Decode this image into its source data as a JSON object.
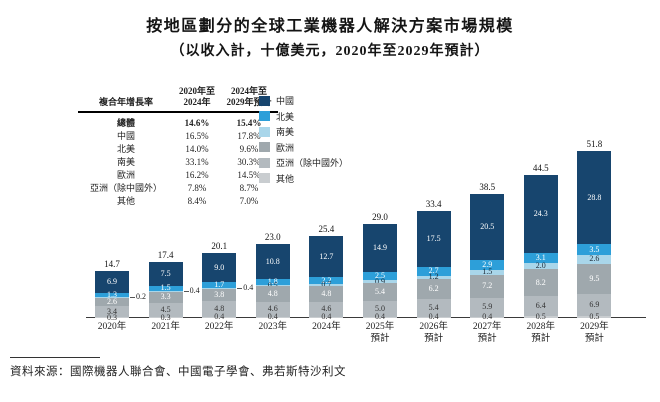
{
  "title": "按地區劃分的全球工業機器人解決方案市場規模",
  "subtitle": "（以收入計，十億美元，2020年至2029年預計）",
  "source": "資料來源：國際機器人聯合會、中國電子學會、弗若斯特沙利文",
  "cagr_table": {
    "headers": [
      "複合年增長率",
      "2020年至\n2024年",
      "2024年至\n2029年預計"
    ],
    "rows": [
      {
        "label": "總體",
        "v1": "14.6%",
        "v2": "15.4%",
        "bold": true
      },
      {
        "label": "中國",
        "v1": "16.5%",
        "v2": "17.8%",
        "bold": false
      },
      {
        "label": "北美",
        "v1": "14.0%",
        "v2": "9.6%",
        "bold": false
      },
      {
        "label": "南美",
        "v1": "33.1%",
        "v2": "30.3%",
        "bold": false
      },
      {
        "label": "歐洲",
        "v1": "16.2%",
        "v2": "14.5%",
        "bold": false
      },
      {
        "label": "亞洲（除中國外）",
        "v1": "7.8%",
        "v2": "8.7%",
        "bold": false
      },
      {
        "label": "其他",
        "v1": "8.4%",
        "v2": "7.0%",
        "bold": false
      }
    ]
  },
  "legend": {
    "items": [
      {
        "label": "中國",
        "color": "#17456e"
      },
      {
        "label": "北美",
        "color": "#2d9fd9"
      },
      {
        "label": "南美",
        "color": "#a9d6ea"
      },
      {
        "label": "歐洲",
        "color": "#9fa8ad"
      },
      {
        "label": "亞洲（除中國外）",
        "color": "#b3babf"
      },
      {
        "label": "其他",
        "color": "#c9cdd0"
      }
    ]
  },
  "chart_data": {
    "type": "bar",
    "stacked": true,
    "title": "按地區劃分的全球工業機器人解決方案市場規模",
    "ylabel": "十億美元",
    "grid": false,
    "legend_position": "upper-left",
    "categories": [
      "2020年",
      "2021年",
      "2022年",
      "2023年",
      "2024年",
      "2025年\n預計",
      "2026年\n預計",
      "2027年\n預計",
      "2028年\n預計",
      "2029年\n預計"
    ],
    "totals": [
      14.7,
      17.4,
      20.1,
      23.0,
      25.4,
      29.0,
      33.4,
      38.5,
      44.5,
      51.8
    ],
    "series": [
      {
        "name": "中國",
        "color": "#17456e",
        "label_color": "#ffffff",
        "values": [
          6.9,
          7.5,
          9.0,
          10.8,
          12.7,
          14.9,
          17.5,
          20.5,
          24.3,
          28.8
        ]
      },
      {
        "name": "北美",
        "color": "#2d9fd9",
        "label_color": "#ffffff",
        "values": [
          1.3,
          1.5,
          1.7,
          1.8,
          2.2,
          2.5,
          2.7,
          2.9,
          3.1,
          3.5
        ]
      },
      {
        "name": "南美",
        "color": "#a9d6ea",
        "label_color": "#1d2b38",
        "values": [
          0.2,
          0.4,
          0.4,
          0.5,
          0.7,
          0.9,
          1.2,
          1.5,
          2.0,
          2.6
        ]
      },
      {
        "name": "歐洲",
        "color": "#9fa8ad",
        "label_color": "#ffffff",
        "values": [
          2.6,
          3.3,
          3.8,
          4.8,
          4.8,
          5.4,
          6.2,
          7.2,
          8.2,
          9.5
        ]
      },
      {
        "name": "亞洲（除中國外）",
        "color": "#b3babf",
        "label_color": "#333333",
        "values": [
          3.4,
          4.5,
          4.8,
          4.6,
          4.6,
          5.0,
          5.4,
          5.9,
          6.4,
          6.9
        ]
      },
      {
        "name": "其他",
        "color": "#c9cdd0",
        "label_color": "#333333",
        "values": [
          0.3,
          0.3,
          0.4,
          0.4,
          0.4,
          0.4,
          0.4,
          0.4,
          0.5,
          0.5
        ]
      }
    ]
  }
}
